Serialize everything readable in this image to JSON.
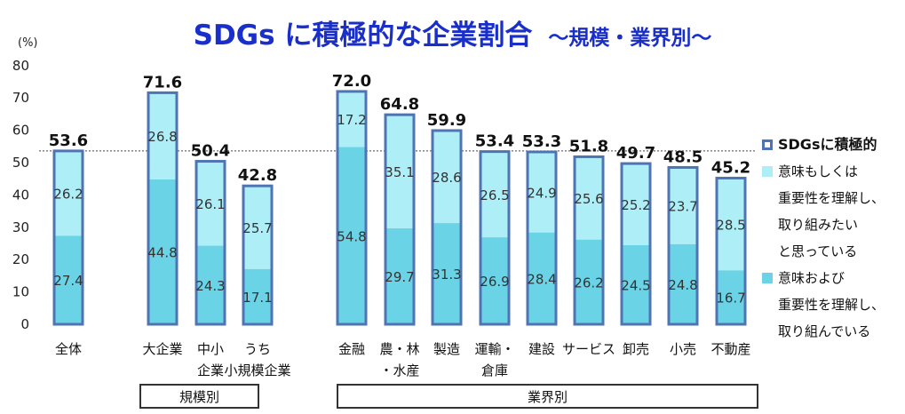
{
  "title": {
    "main": "SDGs に積極的な企業割合",
    "sub": "～規模・業界別～"
  },
  "chart_data": {
    "type": "bar",
    "stacked": true,
    "y_unit_label": "(%)",
    "ylim": [
      0,
      80
    ],
    "yticks": [
      0,
      10,
      20,
      30,
      40,
      50,
      60,
      70,
      80
    ],
    "reference_line": 53.6,
    "categories": [
      [
        "全体"
      ],
      [
        "大企業"
      ],
      [
        "中小",
        "企業"
      ],
      [
        "うち",
        "小規模企業"
      ],
      [
        "金融"
      ],
      [
        "農・林",
        "・水産"
      ],
      [
        "製造"
      ],
      [
        "運輸・",
        "倉庫"
      ],
      [
        "建設"
      ],
      [
        "サービス"
      ],
      [
        "卸売"
      ],
      [
        "小売"
      ],
      [
        "不動産"
      ]
    ],
    "series": [
      {
        "name": "意味および 重要性を理解し、 取り組んでいる",
        "color": "#6ad3e6",
        "values": [
          27.4,
          44.8,
          24.3,
          17.1,
          54.8,
          29.7,
          31.3,
          26.9,
          28.4,
          26.2,
          24.5,
          24.8,
          16.7
        ]
      },
      {
        "name": "意味もしくは 重要性を理解し、 取り組みたい と思っている",
        "color": "#aeeef7",
        "values": [
          26.2,
          26.8,
          26.1,
          25.7,
          17.2,
          35.1,
          28.6,
          26.5,
          24.9,
          25.6,
          25.2,
          23.7,
          28.5
        ]
      }
    ],
    "totals": [
      53.6,
      71.6,
      50.4,
      42.8,
      72.0,
      64.8,
      59.9,
      53.4,
      53.3,
      51.8,
      49.7,
      48.5,
      45.2
    ],
    "total_labels": [
      "53.6",
      "71.6",
      "50.4",
      "42.8",
      "72.0",
      "64.8",
      "59.9",
      "53.4",
      "53.3",
      "51.8",
      "49.7",
      "48.5",
      "45.2"
    ],
    "groups": [
      {
        "label": "規模別"
      },
      {
        "label": "業界別"
      }
    ]
  },
  "legend": {
    "total": "SDGsに積極的",
    "light": [
      "意味もしくは",
      "重要性を理解し、",
      "取り組みたい",
      "と思っている"
    ],
    "dark": [
      "意味および",
      "重要性を理解し、",
      "取り組んでいる"
    ]
  },
  "colors": {
    "title": "#1a2fc9",
    "dark": "#6ad3e6",
    "light": "#aeeef7",
    "border": "#4f74b3"
  }
}
